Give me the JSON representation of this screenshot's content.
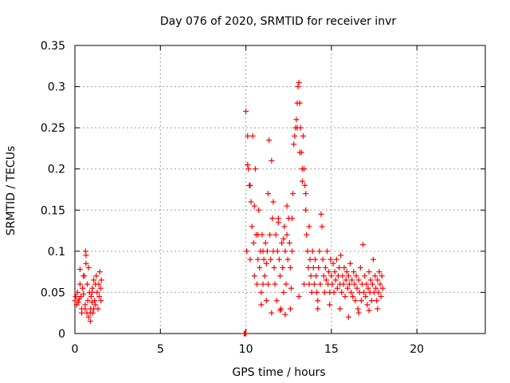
{
  "chart_data": {
    "type": "scatter",
    "title": "Day 076 of 2020, SRMTID for receiver invr",
    "xlabel": "GPS time / hours",
    "ylabel": "SRMTID / TECUs",
    "xlim": [
      0,
      24
    ],
    "ylim": [
      0,
      0.35
    ],
    "x_ticks": [
      0,
      5,
      10,
      15,
      20
    ],
    "y_ticks": [
      0,
      0.05,
      0.1,
      0.15,
      0.2,
      0.25,
      0.3,
      0.35
    ],
    "x_tick_labels": [
      "0",
      "5",
      "10",
      "15",
      "20"
    ],
    "y_tick_labels": [
      "0",
      "0.05",
      "0.1",
      "0.15",
      "0.2",
      "0.25",
      "0.3",
      "0.35"
    ],
    "grid": true,
    "marker": "+",
    "color": "#ff0000",
    "series": [
      {
        "values": [
          [
            0.0,
            0.04
          ],
          [
            0.05,
            0.045
          ],
          [
            0.1,
            0.035
          ],
          [
            0.15,
            0.05
          ],
          [
            0.2,
            0.038
          ],
          [
            0.25,
            0.042
          ],
          [
            0.3,
            0.06
          ],
          [
            0.35,
            0.045
          ],
          [
            0.4,
            0.03
          ],
          [
            0.45,
            0.055
          ],
          [
            0.5,
            0.048
          ],
          [
            0.55,
            0.07
          ],
          [
            0.6,
            0.035
          ],
          [
            0.62,
            0.1
          ],
          [
            0.65,
            0.085
          ],
          [
            0.7,
            0.025
          ],
          [
            0.72,
            0.06
          ],
          [
            0.75,
            0.04
          ],
          [
            0.8,
            0.02
          ],
          [
            0.85,
            0.05
          ],
          [
            0.9,
            0.015
          ],
          [
            0.92,
            0.03
          ],
          [
            0.95,
            0.045
          ],
          [
            1.0,
            0.038
          ],
          [
            1.02,
            0.055
          ],
          [
            1.05,
            0.025
          ],
          [
            1.1,
            0.065
          ],
          [
            1.15,
            0.04
          ],
          [
            1.2,
            0.035
          ],
          [
            1.25,
            0.07
          ],
          [
            1.3,
            0.05
          ],
          [
            1.35,
            0.03
          ],
          [
            1.4,
            0.06
          ],
          [
            1.42,
            0.045
          ],
          [
            1.45,
            0.075
          ],
          [
            1.5,
            0.055
          ],
          [
            1.52,
            0.04
          ],
          [
            1.55,
            0.065
          ],
          [
            0.3,
            0.078
          ],
          [
            0.5,
            0.07
          ],
          [
            0.65,
            0.095
          ],
          [
            0.8,
            0.08
          ],
          [
            1.0,
            0.05
          ],
          [
            1.2,
            0.06
          ],
          [
            0.4,
            0.025
          ],
          [
            0.6,
            0.03
          ],
          [
            0.9,
            0.025
          ],
          [
            1.1,
            0.03
          ],
          [
            9.9,
            0.0
          ],
          [
            9.95,
            0.0
          ],
          [
            10.0,
            0.0
          ],
          [
            10.0,
            0.27
          ],
          [
            10.05,
            0.1
          ],
          [
            10.1,
            0.24
          ],
          [
            10.15,
            0.2
          ],
          [
            10.2,
            0.18
          ],
          [
            10.25,
            0.09
          ],
          [
            10.3,
            0.16
          ],
          [
            10.35,
            0.13
          ],
          [
            10.4,
            0.24
          ],
          [
            10.45,
            0.11
          ],
          [
            10.5,
            0.07
          ],
          [
            10.55,
            0.2
          ],
          [
            10.6,
            0.12
          ],
          [
            10.65,
            0.06
          ],
          [
            10.7,
            0.09
          ],
          [
            10.75,
            0.15
          ],
          [
            10.8,
            0.08
          ],
          [
            10.85,
            0.1
          ],
          [
            10.9,
            0.05
          ],
          [
            10.95,
            0.12
          ],
          [
            11.0,
            0.06
          ],
          [
            11.05,
            0.09
          ],
          [
            11.1,
            0.07
          ],
          [
            11.15,
            0.11
          ],
          [
            11.2,
            0.085
          ],
          [
            11.25,
            0.1
          ],
          [
            11.3,
            0.06
          ],
          [
            11.35,
            0.235
          ],
          [
            11.4,
            0.12
          ],
          [
            11.45,
            0.09
          ],
          [
            11.5,
            0.21
          ],
          [
            11.55,
            0.14
          ],
          [
            11.6,
            0.1
          ],
          [
            11.65,
            0.08
          ],
          [
            11.7,
            0.06
          ],
          [
            11.75,
            0.12
          ],
          [
            11.8,
            0.04
          ],
          [
            11.85,
            0.1
          ],
          [
            11.9,
            0.14
          ],
          [
            11.95,
            0.09
          ],
          [
            12.0,
            0.07
          ],
          [
            12.05,
            0.03
          ],
          [
            12.1,
            0.11
          ],
          [
            12.15,
            0.08
          ],
          [
            12.2,
            0.05
          ],
          [
            12.25,
            0.13
          ],
          [
            12.3,
            0.1
          ],
          [
            12.35,
            0.06
          ],
          [
            12.4,
            0.12
          ],
          [
            12.45,
            0.09
          ],
          [
            12.5,
            0.14
          ],
          [
            12.55,
            0.11
          ],
          [
            12.6,
            0.08
          ],
          [
            12.65,
            0.055
          ],
          [
            12.7,
            0.1
          ],
          [
            12.75,
            0.17
          ],
          [
            12.8,
            0.23
          ],
          [
            12.85,
            0.24
          ],
          [
            12.9,
            0.25
          ],
          [
            12.95,
            0.26
          ],
          [
            13.0,
            0.28
          ],
          [
            13.05,
            0.3
          ],
          [
            13.1,
            0.305
          ],
          [
            13.15,
            0.28
          ],
          [
            13.2,
            0.25
          ],
          [
            13.25,
            0.22
          ],
          [
            13.3,
            0.2
          ],
          [
            13.35,
            0.24
          ],
          [
            13.4,
            0.2
          ],
          [
            13.45,
            0.18
          ],
          [
            13.5,
            0.15
          ],
          [
            13.55,
            0.12
          ],
          [
            13.6,
            0.1
          ],
          [
            13.65,
            0.08
          ],
          [
            13.7,
            0.06
          ],
          [
            13.75,
            0.09
          ],
          [
            13.8,
            0.07
          ],
          [
            13.85,
            0.05
          ],
          [
            13.9,
            0.1
          ],
          [
            13.95,
            0.08
          ],
          [
            14.0,
            0.06
          ],
          [
            14.05,
            0.09
          ],
          [
            14.1,
            0.07
          ],
          [
            14.15,
            0.05
          ],
          [
            14.2,
            0.04
          ],
          [
            14.25,
            0.08
          ],
          [
            14.3,
            0.1
          ],
          [
            14.35,
            0.06
          ],
          [
            14.4,
            0.145
          ],
          [
            14.45,
            0.13
          ],
          [
            14.5,
            0.09
          ],
          [
            14.55,
            0.07
          ],
          [
            14.6,
            0.05
          ],
          [
            14.65,
            0.08
          ],
          [
            14.7,
            0.065
          ],
          [
            14.75,
            0.1
          ],
          [
            14.8,
            0.06
          ],
          [
            14.85,
            0.075
          ],
          [
            14.9,
            0.05
          ],
          [
            14.95,
            0.09
          ],
          [
            15.0,
            0.07
          ],
          [
            15.05,
            0.06
          ],
          [
            15.1,
            0.085
          ],
          [
            15.15,
            0.05
          ],
          [
            15.2,
            0.075
          ],
          [
            15.25,
            0.065
          ],
          [
            15.3,
            0.09
          ],
          [
            15.35,
            0.055
          ],
          [
            15.4,
            0.07
          ],
          [
            15.45,
            0.08
          ],
          [
            15.5,
            0.06
          ],
          [
            15.55,
            0.095
          ],
          [
            15.6,
            0.05
          ],
          [
            15.65,
            0.07
          ],
          [
            15.7,
            0.06
          ],
          [
            15.75,
            0.08
          ],
          [
            15.8,
            0.045
          ],
          [
            15.85,
            0.065
          ],
          [
            15.9,
            0.075
          ],
          [
            15.95,
            0.055
          ],
          [
            16.0,
            0.07
          ],
          [
            16.05,
            0.06
          ],
          [
            16.1,
            0.085
          ],
          [
            16.15,
            0.05
          ],
          [
            16.2,
            0.065
          ],
          [
            16.25,
            0.045
          ],
          [
            16.3,
            0.075
          ],
          [
            16.35,
            0.06
          ],
          [
            16.4,
            0.04
          ],
          [
            16.45,
            0.07
          ],
          [
            16.5,
            0.055
          ],
          [
            16.55,
            0.03
          ],
          [
            16.6,
            0.065
          ],
          [
            16.65,
            0.05
          ],
          [
            16.7,
            0.08
          ],
          [
            16.75,
            0.04
          ],
          [
            16.8,
            0.06
          ],
          [
            16.85,
            0.108
          ],
          [
            16.9,
            0.05
          ],
          [
            16.95,
            0.07
          ],
          [
            17.0,
            0.045
          ],
          [
            17.05,
            0.06
          ],
          [
            17.1,
            0.035
          ],
          [
            17.15,
            0.055
          ],
          [
            17.2,
            0.075
          ],
          [
            17.25,
            0.05
          ],
          [
            17.3,
            0.065
          ],
          [
            17.35,
            0.04
          ],
          [
            17.4,
            0.06
          ],
          [
            17.45,
            0.09
          ],
          [
            17.5,
            0.05
          ],
          [
            17.55,
            0.07
          ],
          [
            17.6,
            0.055
          ],
          [
            17.65,
            0.04
          ],
          [
            17.7,
            0.065
          ],
          [
            17.75,
            0.05
          ],
          [
            17.8,
            0.075
          ],
          [
            17.85,
            0.06
          ],
          [
            17.9,
            0.045
          ],
          [
            17.95,
            0.07
          ],
          [
            18.0,
            0.055
          ],
          [
            17.7,
            0.03
          ],
          [
            17.2,
            0.028
          ],
          [
            16.6,
            0.025
          ],
          [
            16.0,
            0.02
          ],
          [
            15.5,
            0.03
          ],
          [
            14.9,
            0.035
          ],
          [
            14.2,
            0.03
          ],
          [
            10.1,
            0.205
          ],
          [
            10.25,
            0.18
          ],
          [
            10.5,
            0.155
          ],
          [
            10.7,
            0.12
          ],
          [
            11.0,
            0.1
          ],
          [
            11.3,
            0.17
          ],
          [
            11.6,
            0.16
          ],
          [
            11.9,
            0.135
          ],
          [
            12.2,
            0.115
          ],
          [
            12.4,
            0.155
          ],
          [
            12.7,
            0.14
          ],
          [
            13.0,
            0.25
          ],
          [
            13.15,
            0.22
          ],
          [
            13.3,
            0.185
          ],
          [
            13.5,
            0.17
          ],
          [
            13.7,
            0.13
          ],
          [
            11.2,
            0.04
          ],
          [
            11.5,
            0.025
          ],
          [
            12.0,
            0.028
          ],
          [
            12.3,
            0.023
          ],
          [
            12.6,
            0.03
          ],
          [
            10.9,
            0.035
          ],
          [
            13.1,
            0.045
          ],
          [
            13.4,
            0.06
          ]
        ]
      }
    ]
  }
}
